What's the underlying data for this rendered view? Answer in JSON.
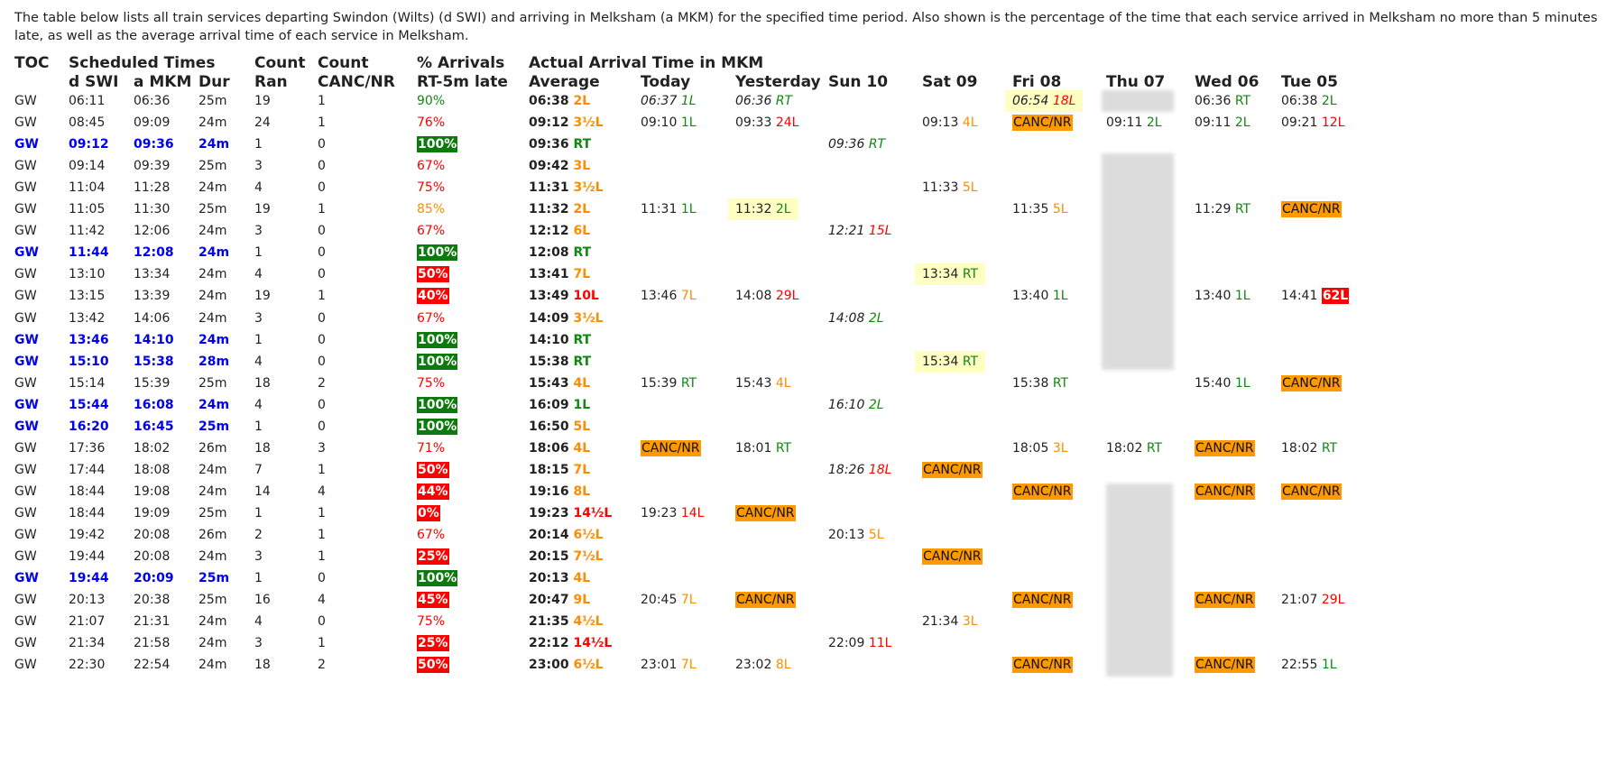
{
  "intro": "The table below lists all train services departing Swindon (Wilts) (d SWI) and arriving in Melksham (a MKM) for the specified time period. Also shown is the percentage of the time that each service arrived in Melksham no more than 5 minutes late, as well as the average arrival time of each service in Melksham.",
  "headers": {
    "toc": "TOC",
    "scheduled": "Scheduled Times",
    "dep": "d SWI",
    "arr": "a MKM",
    "dur": "Dur",
    "count1": "Count",
    "ran": "Ran",
    "count2": "Count",
    "canc": "CANC/NR",
    "pct1": "% Arrivals",
    "pct2": "RT-5m late",
    "actual": "Actual Arrival Time in MKM",
    "average": "Average",
    "days": [
      "Today",
      "Yesterday",
      "Sun 10",
      "Sat 09",
      "Fri 08",
      "Thu 07",
      "Wed 06",
      "Tue 05"
    ]
  },
  "colors": {
    "green": "#118811",
    "orange": "#ff8c00",
    "red": "#ff0000",
    "link_blue": "#0000ee",
    "canc_bg": "#ff9900",
    "highlight": "#ffffc4"
  },
  "rows": [
    {
      "toc": "GW",
      "dep": "06:11",
      "arr": "06:36",
      "dur": "25m",
      "ran": "19",
      "canc": "1",
      "pct": "90%",
      "ps": "g",
      "avg": "06:38",
      "avgd": "2L",
      "avgc": "o",
      "days": [
        {
          "t": "06:37",
          "d": "1L",
          "c": "g",
          "i": 1
        },
        {
          "t": "06:36",
          "d": "RT",
          "c": "g",
          "i": 1
        },
        null,
        null,
        {
          "t": "06:54",
          "d": "18L",
          "c": "r",
          "i": 1,
          "hl": 1
        },
        null,
        {
          "t": "06:36",
          "d": "RT",
          "c": "g"
        },
        {
          "t": "06:38",
          "d": "2L",
          "c": "g"
        }
      ]
    },
    {
      "toc": "GW",
      "dep": "08:45",
      "arr": "09:09",
      "dur": "24m",
      "ran": "24",
      "canc": "1",
      "pct": "76%",
      "ps": "r",
      "avg": "09:12",
      "avgd": "3½L",
      "avgc": "o",
      "days": [
        {
          "t": "09:10",
          "d": "1L",
          "c": "g"
        },
        {
          "t": "09:33",
          "d": "24L",
          "c": "r"
        },
        null,
        {
          "t": "09:13",
          "d": "4L",
          "c": "o"
        },
        {
          "x": "CANC/NR"
        },
        {
          "t": "09:11",
          "d": "2L",
          "c": "g"
        },
        {
          "t": "09:11",
          "d": "2L",
          "c": "g"
        },
        {
          "t": "09:21",
          "d": "12L",
          "c": "r"
        }
      ]
    },
    {
      "toc": "GW",
      "dep": "09:12",
      "arr": "09:36",
      "dur": "24m",
      "ran": "1",
      "canc": "0",
      "pct": "100%",
      "ps": "gb",
      "avg": "09:36",
      "avgd": "RT",
      "avgc": "g",
      "blue": 1,
      "days": [
        null,
        null,
        {
          "t": "09:36",
          "d": "RT",
          "c": "g",
          "i": 1
        },
        null,
        null,
        null,
        null,
        null
      ]
    },
    {
      "toc": "GW",
      "dep": "09:14",
      "arr": "09:39",
      "dur": "25m",
      "ran": "3",
      "canc": "0",
      "pct": "67%",
      "ps": "r",
      "avg": "09:42",
      "avgd": "3L",
      "avgc": "o",
      "days": []
    },
    {
      "toc": "GW",
      "dep": "11:04",
      "arr": "11:28",
      "dur": "24m",
      "ran": "4",
      "canc": "0",
      "pct": "75%",
      "ps": "r",
      "avg": "11:31",
      "avgd": "3½L",
      "avgc": "o",
      "days": [
        null,
        null,
        null,
        {
          "t": "11:33",
          "d": "5L",
          "c": "o"
        }
      ]
    },
    {
      "toc": "GW",
      "dep": "11:05",
      "arr": "11:30",
      "dur": "25m",
      "ran": "19",
      "canc": "1",
      "pct": "85%",
      "ps": "o",
      "avg": "11:32",
      "avgd": "2L",
      "avgc": "o",
      "days": [
        {
          "t": "11:31",
          "d": "1L",
          "c": "g"
        },
        {
          "t": "11:32",
          "d": "2L",
          "c": "g",
          "hl": 1
        },
        null,
        null,
        {
          "t": "11:35",
          "d": "5L",
          "c": "o"
        },
        null,
        {
          "t": "11:29",
          "d": "RT",
          "c": "g"
        },
        {
          "x": "CANC/NR"
        }
      ]
    },
    {
      "toc": "GW",
      "dep": "11:42",
      "arr": "12:06",
      "dur": "24m",
      "ran": "3",
      "canc": "0",
      "pct": "67%",
      "ps": "r",
      "avg": "12:12",
      "avgd": "6L",
      "avgc": "o",
      "days": [
        null,
        null,
        {
          "t": "12:21",
          "d": "15L",
          "c": "r",
          "i": 1
        }
      ]
    },
    {
      "toc": "GW",
      "dep": "11:44",
      "arr": "12:08",
      "dur": "24m",
      "ran": "1",
      "canc": "0",
      "pct": "100%",
      "ps": "gb",
      "avg": "12:08",
      "avgd": "RT",
      "avgc": "g",
      "blue": 1,
      "days": []
    },
    {
      "toc": "GW",
      "dep": "13:10",
      "arr": "13:34",
      "dur": "24m",
      "ran": "4",
      "canc": "0",
      "pct": "50%",
      "ps": "rb",
      "avg": "13:41",
      "avgd": "7L",
      "avgc": "o",
      "days": [
        null,
        null,
        null,
        {
          "t": "13:34",
          "d": "RT",
          "c": "g",
          "hl": 1
        }
      ]
    },
    {
      "toc": "GW",
      "dep": "13:15",
      "arr": "13:39",
      "dur": "24m",
      "ran": "19",
      "canc": "1",
      "pct": "40%",
      "ps": "rb",
      "avg": "13:49",
      "avgd": "10L",
      "avgc": "r",
      "days": [
        {
          "t": "13:46",
          "d": "7L",
          "c": "o"
        },
        {
          "t": "14:08",
          "d": "29L",
          "c": "r"
        },
        null,
        null,
        {
          "t": "13:40",
          "d": "1L",
          "c": "g"
        },
        null,
        {
          "t": "13:40",
          "d": "1L",
          "c": "g"
        },
        {
          "t": "14:41",
          "d": "62L",
          "c": "rb"
        }
      ]
    },
    {
      "toc": "GW",
      "dep": "13:42",
      "arr": "14:06",
      "dur": "24m",
      "ran": "3",
      "canc": "0",
      "pct": "67%",
      "ps": "r",
      "avg": "14:09",
      "avgd": "3½L",
      "avgc": "o",
      "days": [
        null,
        null,
        {
          "t": "14:08",
          "d": "2L",
          "c": "g",
          "i": 1
        }
      ]
    },
    {
      "toc": "GW",
      "dep": "13:46",
      "arr": "14:10",
      "dur": "24m",
      "ran": "1",
      "canc": "0",
      "pct": "100%",
      "ps": "gb",
      "avg": "14:10",
      "avgd": "RT",
      "avgc": "g",
      "blue": 1,
      "days": []
    },
    {
      "toc": "GW",
      "dep": "15:10",
      "arr": "15:38",
      "dur": "28m",
      "ran": "4",
      "canc": "0",
      "pct": "100%",
      "ps": "gb",
      "avg": "15:38",
      "avgd": "RT",
      "avgc": "g",
      "blue": 1,
      "days": [
        null,
        null,
        null,
        {
          "t": "15:34",
          "d": "RT",
          "c": "g",
          "hl": 1
        }
      ]
    },
    {
      "toc": "GW",
      "dep": "15:14",
      "arr": "15:39",
      "dur": "25m",
      "ran": "18",
      "canc": "2",
      "pct": "75%",
      "ps": "r",
      "avg": "15:43",
      "avgd": "4L",
      "avgc": "o",
      "days": [
        {
          "t": "15:39",
          "d": "RT",
          "c": "g"
        },
        {
          "t": "15:43",
          "d": "4L",
          "c": "o"
        },
        null,
        null,
        {
          "t": "15:38",
          "d": "RT",
          "c": "g"
        },
        null,
        {
          "t": "15:40",
          "d": "1L",
          "c": "g"
        },
        {
          "x": "CANC/NR"
        }
      ]
    },
    {
      "toc": "GW",
      "dep": "15:44",
      "arr": "16:08",
      "dur": "24m",
      "ran": "4",
      "canc": "0",
      "pct": "100%",
      "ps": "gb",
      "avg": "16:09",
      "avgd": "1L",
      "avgc": "g",
      "blue": 1,
      "days": [
        null,
        null,
        {
          "t": "16:10",
          "d": "2L",
          "c": "g",
          "i": 1
        }
      ]
    },
    {
      "toc": "GW",
      "dep": "16:20",
      "arr": "16:45",
      "dur": "25m",
      "ran": "1",
      "canc": "0",
      "pct": "100%",
      "ps": "gb",
      "avg": "16:50",
      "avgd": "5L",
      "avgc": "o",
      "blue": 1,
      "days": []
    },
    {
      "toc": "GW",
      "dep": "17:36",
      "arr": "18:02",
      "dur": "26m",
      "ran": "18",
      "canc": "3",
      "pct": "71%",
      "ps": "r",
      "avg": "18:06",
      "avgd": "4L",
      "avgc": "o",
      "days": [
        {
          "x": "CANC/NR"
        },
        {
          "t": "18:01",
          "d": "RT",
          "c": "g"
        },
        null,
        null,
        {
          "t": "18:05",
          "d": "3L",
          "c": "o"
        },
        {
          "t": "18:02",
          "d": "RT",
          "c": "g"
        },
        {
          "x": "CANC/NR"
        },
        {
          "t": "18:02",
          "d": "RT",
          "c": "g"
        }
      ]
    },
    {
      "toc": "GW",
      "dep": "17:44",
      "arr": "18:08",
      "dur": "24m",
      "ran": "7",
      "canc": "1",
      "pct": "50%",
      "ps": "rb",
      "avg": "18:15",
      "avgd": "7L",
      "avgc": "o",
      "days": [
        null,
        null,
        {
          "t": "18:26",
          "d": "18L",
          "c": "r",
          "i": 1
        },
        {
          "x": "CANC/NR"
        }
      ]
    },
    {
      "toc": "GW",
      "dep": "18:44",
      "arr": "19:08",
      "dur": "24m",
      "ran": "14",
      "canc": "4",
      "pct": "44%",
      "ps": "rb",
      "avg": "19:16",
      "avgd": "8L",
      "avgc": "o",
      "days": [
        null,
        null,
        null,
        null,
        {
          "x": "CANC/NR"
        },
        null,
        {
          "x": "CANC/NR"
        },
        {
          "x": "CANC/NR"
        }
      ]
    },
    {
      "toc": "GW",
      "dep": "18:44",
      "arr": "19:09",
      "dur": "25m",
      "ran": "1",
      "canc": "1",
      "pct": "0%",
      "ps": "rb",
      "avg": "19:23",
      "avgd": "14½L",
      "avgc": "r",
      "days": [
        {
          "t": "19:23",
          "d": "14L",
          "c": "r"
        },
        {
          "x": "CANC/NR"
        }
      ]
    },
    {
      "toc": "GW",
      "dep": "19:42",
      "arr": "20:08",
      "dur": "26m",
      "ran": "2",
      "canc": "1",
      "pct": "67%",
      "ps": "r",
      "avg": "20:14",
      "avgd": "6½L",
      "avgc": "o",
      "days": [
        null,
        null,
        {
          "t": "20:13",
          "d": "5L",
          "c": "o"
        }
      ]
    },
    {
      "toc": "GW",
      "dep": "19:44",
      "arr": "20:08",
      "dur": "24m",
      "ran": "3",
      "canc": "1",
      "pct": "25%",
      "ps": "rb",
      "avg": "20:15",
      "avgd": "7½L",
      "avgc": "o",
      "days": [
        null,
        null,
        null,
        {
          "x": "CANC/NR"
        }
      ]
    },
    {
      "toc": "GW",
      "dep": "19:44",
      "arr": "20:09",
      "dur": "25m",
      "ran": "1",
      "canc": "0",
      "pct": "100%",
      "ps": "gb",
      "avg": "20:13",
      "avgd": "4L",
      "avgc": "o",
      "blue": 1,
      "days": []
    },
    {
      "toc": "GW",
      "dep": "20:13",
      "arr": "20:38",
      "dur": "25m",
      "ran": "16",
      "canc": "4",
      "pct": "45%",
      "ps": "rb",
      "avg": "20:47",
      "avgd": "9L",
      "avgc": "o",
      "days": [
        {
          "t": "20:45",
          "d": "7L",
          "c": "o"
        },
        {
          "x": "CANC/NR"
        },
        null,
        null,
        {
          "x": "CANC/NR"
        },
        null,
        {
          "x": "CANC/NR"
        },
        {
          "t": "21:07",
          "d": "29L",
          "c": "r"
        }
      ]
    },
    {
      "toc": "GW",
      "dep": "21:07",
      "arr": "21:31",
      "dur": "24m",
      "ran": "4",
      "canc": "0",
      "pct": "75%",
      "ps": "r",
      "avg": "21:35",
      "avgd": "4½L",
      "avgc": "o",
      "days": [
        null,
        null,
        null,
        {
          "t": "21:34",
          "d": "3L",
          "c": "o"
        }
      ]
    },
    {
      "toc": "GW",
      "dep": "21:34",
      "arr": "21:58",
      "dur": "24m",
      "ran": "3",
      "canc": "1",
      "pct": "25%",
      "ps": "rb",
      "avg": "22:12",
      "avgd": "14½L",
      "avgc": "r",
      "days": [
        null,
        null,
        {
          "t": "22:09",
          "d": "11L",
          "c": "r"
        }
      ]
    },
    {
      "toc": "GW",
      "dep": "22:30",
      "arr": "22:54",
      "dur": "24m",
      "ran": "18",
      "canc": "2",
      "pct": "50%",
      "ps": "rb",
      "avg": "23:00",
      "avgd": "6½L",
      "avgc": "o",
      "days": [
        {
          "t": "23:01",
          "d": "7L",
          "c": "o"
        },
        {
          "t": "23:02",
          "d": "8L",
          "c": "o"
        },
        null,
        null,
        {
          "x": "CANC/NR"
        },
        null,
        {
          "x": "CANC/NR"
        },
        {
          "t": "22:55",
          "d": "1L",
          "c": "g"
        }
      ]
    }
  ]
}
